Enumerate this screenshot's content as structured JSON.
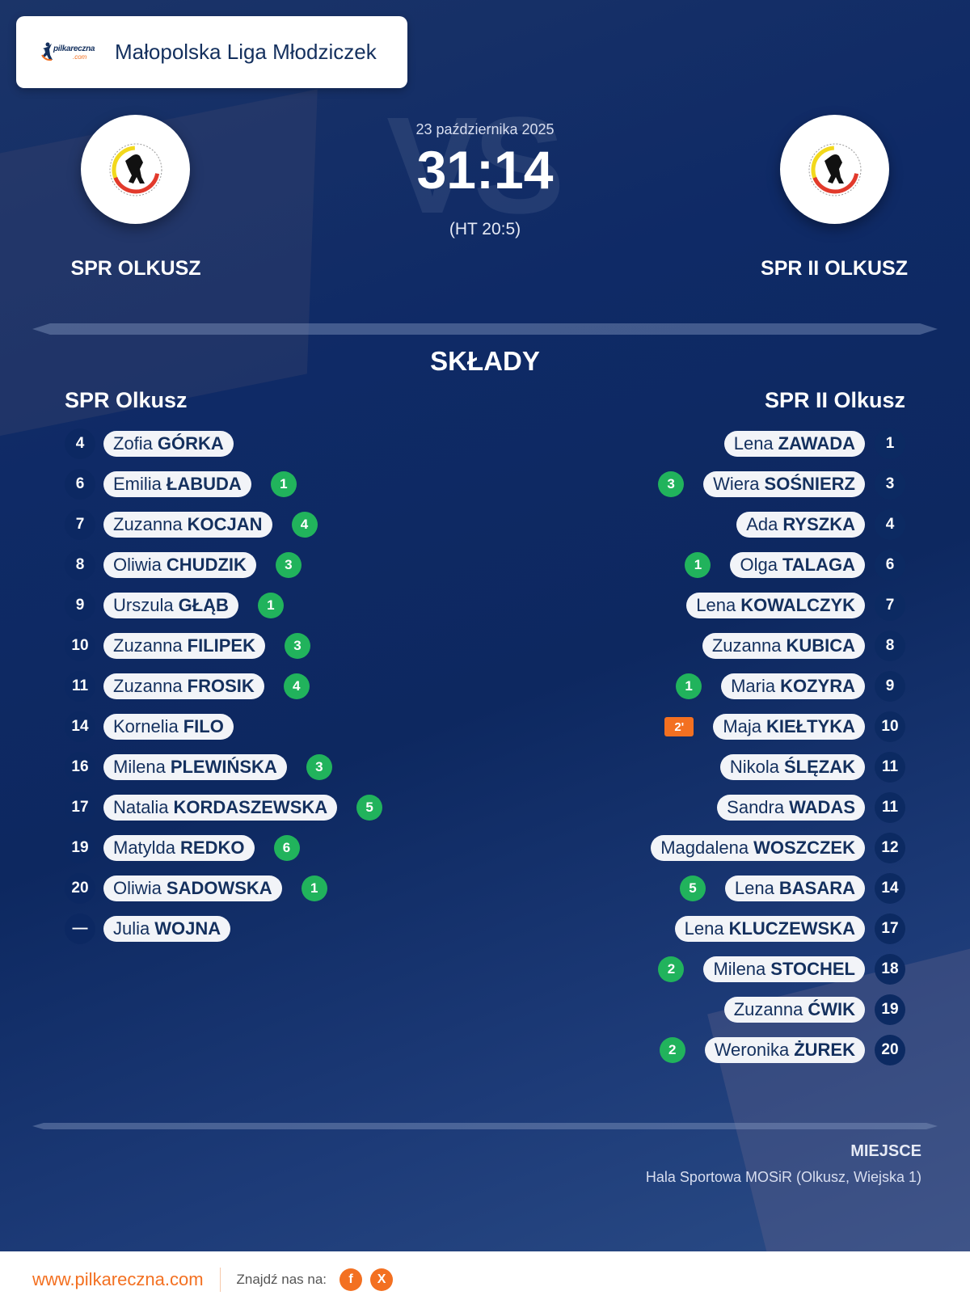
{
  "league": {
    "title": "Małopolska Liga Młodziczek",
    "logo_text": "pilkareczna",
    "logo_sub": ".com"
  },
  "match": {
    "date": "23 października 2025",
    "score": "31:14",
    "halftime": "(HT 20:5)",
    "vs_watermark": "VS",
    "home_team": "SPR OLKUSZ",
    "away_team": "SPR II OLKUSZ"
  },
  "lineups": {
    "title": "SKŁADY",
    "home": {
      "name": "SPR Olkusz",
      "players": [
        {
          "number": "4",
          "first": "Zofia",
          "last": "GÓRKA",
          "goals": null
        },
        {
          "number": "6",
          "first": "Emilia",
          "last": "ŁABUDA",
          "goals": "1"
        },
        {
          "number": "7",
          "first": "Zuzanna",
          "last": "KOCJAN",
          "goals": "4"
        },
        {
          "number": "8",
          "first": "Oliwia",
          "last": "CHUDZIK",
          "goals": "3"
        },
        {
          "number": "9",
          "first": "Urszula",
          "last": "GŁĄB",
          "goals": "1"
        },
        {
          "number": "10",
          "first": "Zuzanna",
          "last": "FILIPEK",
          "goals": "3"
        },
        {
          "number": "11",
          "first": "Zuzanna",
          "last": "FROSIK",
          "goals": "4"
        },
        {
          "number": "14",
          "first": "Kornelia",
          "last": "FILO",
          "goals": null
        },
        {
          "number": "16",
          "first": "Milena",
          "last": "PLEWIŃSKA",
          "goals": "3"
        },
        {
          "number": "17",
          "first": "Natalia",
          "last": "KORDASZEWSKA",
          "goals": "5"
        },
        {
          "number": "19",
          "first": "Matylda",
          "last": "REDKO",
          "goals": "6"
        },
        {
          "number": "20",
          "first": "Oliwia",
          "last": "SADOWSKA",
          "goals": "1"
        },
        {
          "number": "—",
          "first": "Julia",
          "last": "WOJNA",
          "goals": null
        }
      ]
    },
    "away": {
      "name": "SPR II Olkusz",
      "players": [
        {
          "number": "1",
          "first": "Lena",
          "last": "ZAWADA",
          "goals": null
        },
        {
          "number": "3",
          "first": "Wiera",
          "last": "SOŚNIERZ",
          "goals": "3"
        },
        {
          "number": "4",
          "first": "Ada",
          "last": "RYSZKA",
          "goals": null
        },
        {
          "number": "6",
          "first": "Olga",
          "last": "TALAGA",
          "goals": "1"
        },
        {
          "number": "7",
          "first": "Lena",
          "last": "KOWALCZYK",
          "goals": null
        },
        {
          "number": "8",
          "first": "Zuzanna",
          "last": "KUBICA",
          "goals": null
        },
        {
          "number": "9",
          "first": "Maria",
          "last": "KOZYRA",
          "goals": "1"
        },
        {
          "number": "10",
          "first": "Maja",
          "last": "KIEŁTYKA",
          "goals": null,
          "penalty": "2'"
        },
        {
          "number": "11",
          "first": "Nikola",
          "last": "ŚLĘZAK",
          "goals": null
        },
        {
          "number": "11",
          "first": "Sandra",
          "last": "WADAS",
          "goals": null
        },
        {
          "number": "12",
          "first": "Magdalena",
          "last": "WOSZCZEK",
          "goals": null
        },
        {
          "number": "14",
          "first": "Lena",
          "last": "BASARA",
          "goals": "5"
        },
        {
          "number": "17",
          "first": "Lena",
          "last": "KLUCZEWSKA",
          "goals": null
        },
        {
          "number": "18",
          "first": "Milena",
          "last": "STOCHEL",
          "goals": "2"
        },
        {
          "number": "19",
          "first": "Zuzanna",
          "last": "ĆWIK",
          "goals": null
        },
        {
          "number": "20",
          "first": "Weronika",
          "last": "ŻUREK",
          "goals": "2"
        }
      ]
    }
  },
  "venue": {
    "label": "MIEJSCE",
    "value": "Hala Sportowa MOSiR (Olkusz, Wiejska 1)"
  },
  "footer": {
    "url": "www.pilkareczna.com",
    "find_us": "Znajdź nas na:",
    "social": [
      {
        "icon": "facebook-icon",
        "glyph": "f"
      },
      {
        "icon": "x-icon",
        "glyph": "X"
      }
    ]
  },
  "colors": {
    "accent": "#f37021",
    "goal_badge": "#21b35c",
    "navy": "#0c2a62",
    "pill_text": "#14305e"
  }
}
